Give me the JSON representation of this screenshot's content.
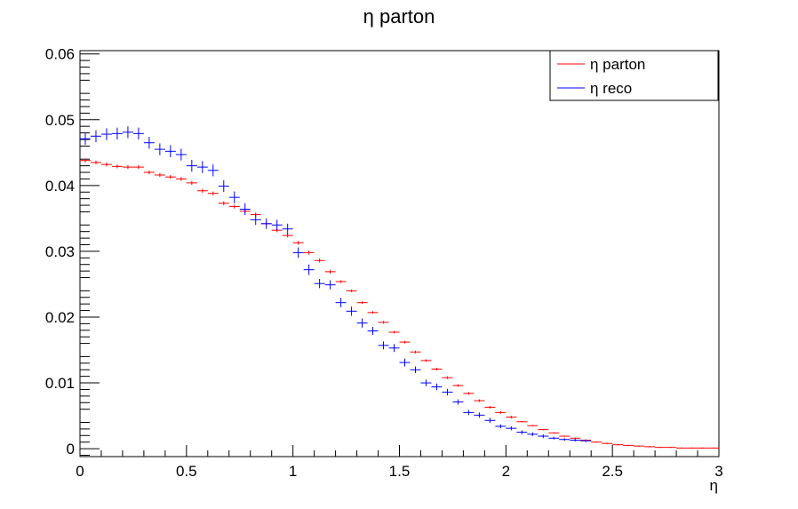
{
  "chart_data": {
    "type": "scatter",
    "title": "η parton",
    "xlabel": "η",
    "ylabel": "",
    "xlim": [
      0,
      3
    ],
    "ylim": [
      -0.0012,
      0.0605
    ],
    "x_ticks": [
      0,
      0.5,
      1,
      1.5,
      2,
      2.5,
      3
    ],
    "x_tick_labels": [
      "0",
      "0.5",
      "1",
      "1.5",
      "2",
      "2.5",
      "3"
    ],
    "y_ticks": [
      0,
      0.01,
      0.02,
      0.03,
      0.04,
      0.05,
      0.06
    ],
    "y_tick_labels": [
      "0",
      "0.01",
      "0.02",
      "0.03",
      "0.04",
      "0.05",
      "0.06"
    ],
    "grid": false,
    "legend_position": "top-right",
    "series": [
      {
        "name": "η parton",
        "color": "#ff0000",
        "bin_width": 0.05,
        "x": [
          0.025,
          0.075,
          0.125,
          0.175,
          0.225,
          0.275,
          0.325,
          0.375,
          0.425,
          0.475,
          0.525,
          0.575,
          0.625,
          0.675,
          0.725,
          0.775,
          0.825,
          0.875,
          0.925,
          0.975,
          1.025,
          1.075,
          1.125,
          1.175,
          1.225,
          1.275,
          1.325,
          1.375,
          1.425,
          1.475,
          1.525,
          1.575,
          1.625,
          1.675,
          1.725,
          1.775,
          1.825,
          1.875,
          1.925,
          1.975,
          2.025,
          2.075,
          2.125,
          2.175,
          2.225,
          2.275,
          2.325,
          2.375,
          2.425,
          2.475,
          2.525,
          2.575,
          2.625,
          2.675,
          2.725,
          2.775,
          2.825,
          2.875,
          2.925,
          2.975
        ],
        "values": [
          0.0438,
          0.0435,
          0.0432,
          0.0429,
          0.0428,
          0.0428,
          0.042,
          0.0416,
          0.0413,
          0.041,
          0.0404,
          0.0392,
          0.0388,
          0.0373,
          0.0368,
          0.0361,
          0.0356,
          0.0342,
          0.0332,
          0.0324,
          0.0313,
          0.0298,
          0.0286,
          0.0269,
          0.0254,
          0.024,
          0.0222,
          0.0207,
          0.0192,
          0.0177,
          0.0162,
          0.0147,
          0.0134,
          0.0121,
          0.0108,
          0.0096,
          0.0084,
          0.0073,
          0.0063,
          0.0055,
          0.0048,
          0.0041,
          0.0035,
          0.0029,
          0.0024,
          0.0019,
          0.0016,
          0.0013,
          0.001,
          0.0008,
          0.0006,
          0.0005,
          0.0004,
          0.0003,
          0.0002,
          0.0002,
          0.0001,
          0.0001,
          0.0001,
          0.0001
        ],
        "errors": [
          0.0003,
          0.0003,
          0.0003,
          0.0003,
          0.0003,
          0.0003,
          0.0003,
          0.0003,
          0.0003,
          0.0003,
          0.0003,
          0.0003,
          0.0003,
          0.0003,
          0.0003,
          0.0003,
          0.0003,
          0.0003,
          0.0003,
          0.0003,
          0.0003,
          0.0003,
          0.0003,
          0.0003,
          0.0002,
          0.0002,
          0.0002,
          0.0002,
          0.0002,
          0.0002,
          0.0002,
          0.0002,
          0.0002,
          0.0002,
          0.0002,
          0.0002,
          0.0002,
          0.0002,
          0.0002,
          0.0002,
          0.0002,
          0.0001,
          0.0001,
          0.0001,
          0.0001,
          0.0001,
          0.0001,
          0.0001,
          0.0001,
          0.0001,
          0.0001,
          0.0001,
          0.0001,
          0.0001,
          0.0001,
          0.0001,
          0.0001,
          0.0001,
          0.0001,
          0.0001
        ]
      },
      {
        "name": "η reco",
        "color": "#0000ff",
        "bin_width": 0.05,
        "x": [
          0.025,
          0.075,
          0.125,
          0.175,
          0.225,
          0.275,
          0.325,
          0.375,
          0.425,
          0.475,
          0.525,
          0.575,
          0.625,
          0.675,
          0.725,
          0.775,
          0.825,
          0.875,
          0.925,
          0.975,
          1.025,
          1.075,
          1.125,
          1.175,
          1.225,
          1.275,
          1.325,
          1.375,
          1.425,
          1.475,
          1.525,
          1.575,
          1.625,
          1.675,
          1.725,
          1.775,
          1.825,
          1.875,
          1.925,
          1.975,
          2.025,
          2.075,
          2.125,
          2.175,
          2.225,
          2.275,
          2.325,
          2.375
        ],
        "values": [
          0.0471,
          0.0475,
          0.0478,
          0.0479,
          0.0481,
          0.0479,
          0.0465,
          0.0455,
          0.0452,
          0.0447,
          0.043,
          0.0428,
          0.0423,
          0.0399,
          0.0382,
          0.0364,
          0.0348,
          0.0342,
          0.034,
          0.0334,
          0.0298,
          0.0272,
          0.0251,
          0.0249,
          0.0222,
          0.0209,
          0.0191,
          0.0179,
          0.0157,
          0.0153,
          0.0131,
          0.012,
          0.01,
          0.0094,
          0.0086,
          0.0071,
          0.0055,
          0.0051,
          0.0043,
          0.0034,
          0.0031,
          0.0025,
          0.0022,
          0.0019,
          0.0016,
          0.0014,
          0.0013,
          0.0012
        ],
        "errors": [
          0.0009,
          0.0009,
          0.0009,
          0.0009,
          0.0009,
          0.0009,
          0.0009,
          0.0009,
          0.0009,
          0.0009,
          0.0009,
          0.0009,
          0.0009,
          0.0009,
          0.0009,
          0.0009,
          0.0008,
          0.0008,
          0.0008,
          0.0008,
          0.0008,
          0.0008,
          0.0007,
          0.0007,
          0.0007,
          0.0007,
          0.0007,
          0.0006,
          0.0006,
          0.0006,
          0.0006,
          0.0005,
          0.0005,
          0.0005,
          0.0005,
          0.0004,
          0.0004,
          0.0004,
          0.0004,
          0.0003,
          0.0003,
          0.0003,
          0.0003,
          0.0003,
          0.0002,
          0.0002,
          0.0002,
          0.0002
        ]
      }
    ]
  }
}
